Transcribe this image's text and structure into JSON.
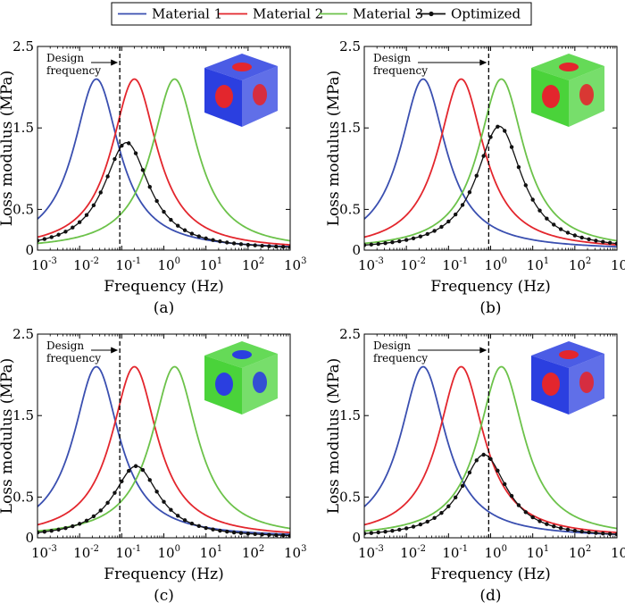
{
  "legend": {
    "entries": [
      {
        "label": "Material 1",
        "color": "#3a4fb0"
      },
      {
        "label": "Material 2",
        "color": "#e3262d"
      },
      {
        "label": "Material 3",
        "color": "#6cc24a"
      },
      {
        "label": "Optimized",
        "color": "#111111",
        "marker": "dot"
      }
    ],
    "placement": "top-center"
  },
  "panels_text": {
    "xlabel": "Frequency (Hz)",
    "ylabel": "Loss modulus (MPa)",
    "annotation_line1": "Design",
    "annotation_line2": "frequency",
    "x_tick_base": "10",
    "x_tick_exponents": [
      "-3",
      "-2",
      "-1",
      "0",
      "1",
      "2",
      "3"
    ],
    "y_tick_labels": [
      "0",
      "0.5",
      "1.5",
      "2.5"
    ]
  },
  "chart_data": [
    {
      "type": "line",
      "caption": "(a)",
      "xscale": "log",
      "xlim": [
        0.001,
        1000
      ],
      "ylim": [
        0,
        2.5
      ],
      "yticks": [
        0,
        0.5,
        1.5,
        2.5
      ],
      "design_frequency": 0.09,
      "inset": {
        "main_color": "#2b3fe0",
        "accent_color": "#e3262d"
      },
      "series": [
        {
          "name": "Material 1",
          "peak_frequency": 0.025,
          "peak_value": 2.1,
          "color": "#3a4fb0"
        },
        {
          "name": "Material 2",
          "peak_frequency": 0.2,
          "peak_value": 2.1,
          "color": "#e3262d"
        },
        {
          "name": "Material 3",
          "peak_frequency": 1.8,
          "peak_value": 2.1,
          "color": "#6cc24a"
        },
        {
          "name": "Optimized",
          "peak_frequency": 0.13,
          "peak_value": 1.32,
          "color": "#111111"
        }
      ]
    },
    {
      "type": "line",
      "caption": "(b)",
      "xscale": "log",
      "xlim": [
        0.001,
        1000
      ],
      "ylim": [
        0,
        2.5
      ],
      "yticks": [
        0,
        0.5,
        1.5,
        2.5
      ],
      "design_frequency": 0.9,
      "inset": {
        "main_color": "#4ad33a",
        "accent_color": "#e3262d"
      },
      "series": [
        {
          "name": "Material 1",
          "peak_frequency": 0.025,
          "peak_value": 2.1,
          "color": "#3a4fb0"
        },
        {
          "name": "Material 2",
          "peak_frequency": 0.2,
          "peak_value": 2.1,
          "color": "#e3262d"
        },
        {
          "name": "Material 3",
          "peak_frequency": 1.8,
          "peak_value": 2.1,
          "color": "#6cc24a"
        },
        {
          "name": "Optimized",
          "peak_frequency": 1.6,
          "peak_value": 1.52,
          "color": "#111111"
        }
      ]
    },
    {
      "type": "line",
      "caption": "(c)",
      "xscale": "log",
      "xlim": [
        0.001,
        1000
      ],
      "ylim": [
        0,
        2.5
      ],
      "yticks": [
        0,
        0.5,
        1.5,
        2.5
      ],
      "design_frequency": 0.09,
      "inset": {
        "main_color": "#4ad33a",
        "accent_color": "#2b3fe0"
      },
      "series": [
        {
          "name": "Material 1",
          "peak_frequency": 0.025,
          "peak_value": 2.1,
          "color": "#3a4fb0"
        },
        {
          "name": "Material 2",
          "peak_frequency": 0.2,
          "peak_value": 2.1,
          "color": "#e3262d"
        },
        {
          "name": "Material 3",
          "peak_frequency": 1.8,
          "peak_value": 2.1,
          "color": "#6cc24a"
        },
        {
          "name": "Optimized",
          "peak_frequency": 0.22,
          "peak_value": 0.88,
          "color": "#111111"
        }
      ]
    },
    {
      "type": "line",
      "caption": "(d)",
      "xscale": "log",
      "xlim": [
        0.001,
        1000
      ],
      "ylim": [
        0,
        2.5
      ],
      "yticks": [
        0,
        0.5,
        1.5,
        2.5
      ],
      "design_frequency": 0.9,
      "inset": {
        "main_color": "#2b3fe0",
        "accent_color": "#e3262d"
      },
      "series": [
        {
          "name": "Material 1",
          "peak_frequency": 0.025,
          "peak_value": 2.1,
          "color": "#3a4fb0"
        },
        {
          "name": "Material 2",
          "peak_frequency": 0.2,
          "peak_value": 2.1,
          "color": "#e3262d"
        },
        {
          "name": "Material 3",
          "peak_frequency": 1.8,
          "peak_value": 2.1,
          "color": "#6cc24a"
        },
        {
          "name": "Optimized",
          "peak_frequency": 0.7,
          "peak_value": 1.02,
          "color": "#111111"
        }
      ]
    }
  ]
}
